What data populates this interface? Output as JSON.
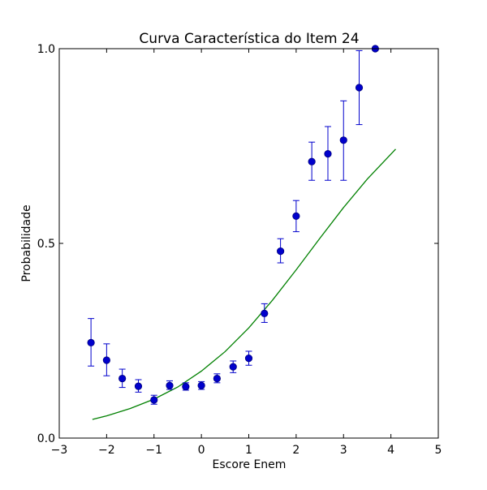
{
  "chart_data": {
    "type": "scatter",
    "title": "Curva Característica do Item 24",
    "xlabel": "Escore Enem",
    "ylabel": "Probabilidade",
    "xlim": [
      -3,
      5
    ],
    "ylim": [
      0,
      1
    ],
    "x_ticks": [
      -3,
      -2,
      -1,
      0,
      1,
      2,
      3,
      4,
      5
    ],
    "x_tick_labels": [
      "−3",
      "−2",
      "−1",
      "0",
      "1",
      "2",
      "3",
      "4",
      "5"
    ],
    "y_ticks": [
      0,
      0.5,
      1
    ],
    "y_tick_labels": [
      "0.0",
      "0.5",
      "1.0"
    ],
    "grid": false,
    "colors": {
      "points": "#0000cc",
      "points_edge": "#000080",
      "errorbars": "#0000cc",
      "curve": "#008000",
      "axes": "#000000"
    },
    "series": [
      {
        "kind": "scatter-errorbar",
        "points": [
          {
            "x": -2.33,
            "y": 0.245,
            "lo": 0.185,
            "hi": 0.307
          },
          {
            "x": -2.0,
            "y": 0.2,
            "lo": 0.16,
            "hi": 0.242
          },
          {
            "x": -1.67,
            "y": 0.153,
            "lo": 0.13,
            "hi": 0.177
          },
          {
            "x": -1.33,
            "y": 0.133,
            "lo": 0.118,
            "hi": 0.15
          },
          {
            "x": -1.0,
            "y": 0.098,
            "lo": 0.087,
            "hi": 0.11
          },
          {
            "x": -0.67,
            "y": 0.135,
            "lo": 0.125,
            "hi": 0.147
          },
          {
            "x": -0.33,
            "y": 0.132,
            "lo": 0.123,
            "hi": 0.142
          },
          {
            "x": 0.0,
            "y": 0.135,
            "lo": 0.125,
            "hi": 0.145
          },
          {
            "x": 0.33,
            "y": 0.153,
            "lo": 0.142,
            "hi": 0.165
          },
          {
            "x": 0.67,
            "y": 0.183,
            "lo": 0.168,
            "hi": 0.198
          },
          {
            "x": 1.0,
            "y": 0.205,
            "lo": 0.187,
            "hi": 0.223
          },
          {
            "x": 1.33,
            "y": 0.32,
            "lo": 0.297,
            "hi": 0.345
          },
          {
            "x": 1.67,
            "y": 0.48,
            "lo": 0.45,
            "hi": 0.512
          },
          {
            "x": 2.0,
            "y": 0.57,
            "lo": 0.53,
            "hi": 0.61
          },
          {
            "x": 2.33,
            "y": 0.71,
            "lo": 0.662,
            "hi": 0.76
          },
          {
            "x": 2.67,
            "y": 0.73,
            "lo": 0.662,
            "hi": 0.8
          },
          {
            "x": 3.0,
            "y": 0.765,
            "lo": 0.662,
            "hi": 0.866
          },
          {
            "x": 3.33,
            "y": 0.9,
            "lo": 0.805,
            "hi": 0.995
          },
          {
            "x": 3.67,
            "y": 1.0,
            "lo": 1.0,
            "hi": 1.0
          }
        ]
      },
      {
        "kind": "curve",
        "points": [
          {
            "x": -2.3,
            "y": 0.048
          },
          {
            "x": -2.0,
            "y": 0.057
          },
          {
            "x": -1.5,
            "y": 0.076
          },
          {
            "x": -1.0,
            "y": 0.1
          },
          {
            "x": -0.5,
            "y": 0.131
          },
          {
            "x": 0.0,
            "y": 0.172
          },
          {
            "x": 0.5,
            "y": 0.222
          },
          {
            "x": 1.0,
            "y": 0.283
          },
          {
            "x": 1.5,
            "y": 0.354
          },
          {
            "x": 2.0,
            "y": 0.432
          },
          {
            "x": 2.5,
            "y": 0.513
          },
          {
            "x": 3.0,
            "y": 0.592
          },
          {
            "x": 3.5,
            "y": 0.665
          },
          {
            "x": 4.1,
            "y": 0.742
          }
        ]
      }
    ]
  }
}
